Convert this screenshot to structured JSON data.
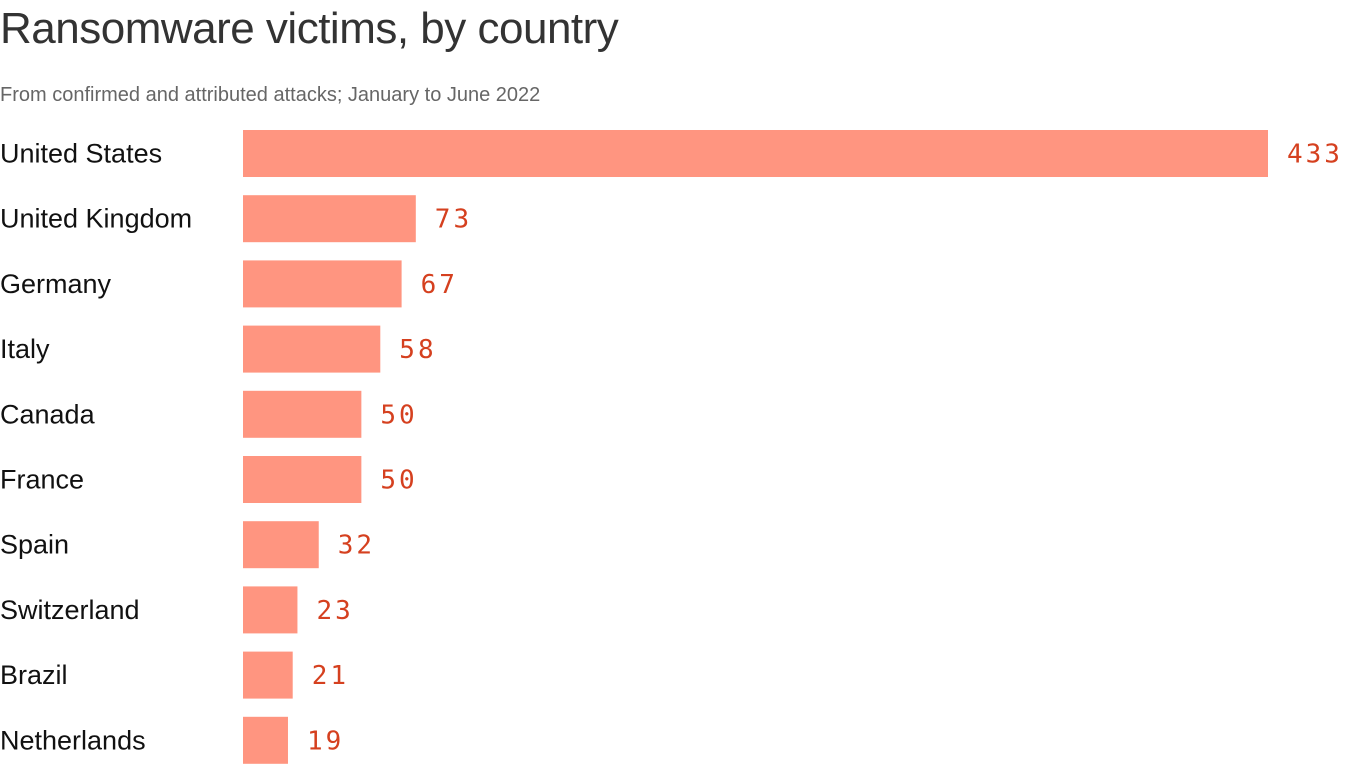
{
  "chart_data": {
    "type": "bar",
    "orientation": "horizontal",
    "title": "Ransomware victims, by country",
    "subtitle": "From confirmed and attributed attacks; January to June 2022",
    "categories": [
      "United States",
      "United Kingdom",
      "Germany",
      "Italy",
      "Canada",
      "France",
      "Spain",
      "Switzerland",
      "Brazil",
      "Netherlands"
    ],
    "values": [
      433,
      73,
      67,
      58,
      50,
      50,
      32,
      23,
      21,
      19
    ],
    "xlim": [
      0,
      433
    ],
    "grid": false,
    "data_labels": true,
    "colors": {
      "bar": "#ff9580",
      "label": "#d5401f",
      "title": "#333333"
    }
  }
}
